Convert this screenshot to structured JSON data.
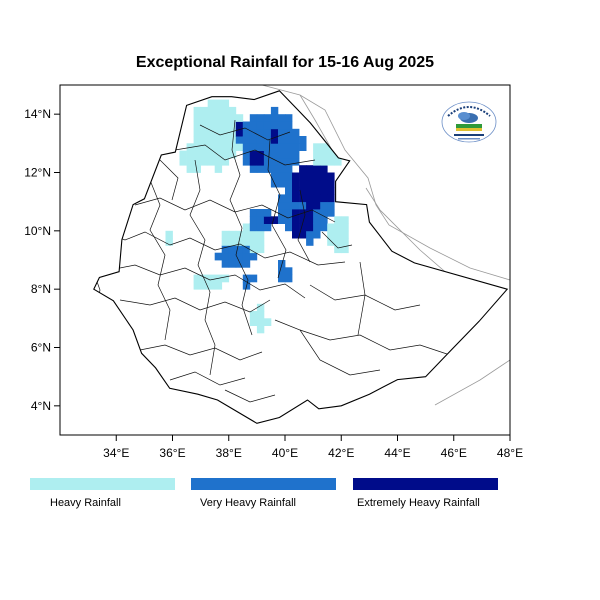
{
  "title": "Exceptional Rainfall for 15-16 Aug 2025",
  "map": {
    "extent": {
      "lon": [
        32.0,
        48.0
      ],
      "lat": [
        3.0,
        15.0
      ]
    },
    "x_ticks": [
      {
        "value": 34,
        "label": "34°E"
      },
      {
        "value": 36,
        "label": "36°E"
      },
      {
        "value": 38,
        "label": "38°E"
      },
      {
        "value": 40,
        "label": "40°E"
      },
      {
        "value": 42,
        "label": "42°E"
      },
      {
        "value": 44,
        "label": "44°E"
      },
      {
        "value": 46,
        "label": "46°E"
      },
      {
        "value": 48,
        "label": "48°E"
      }
    ],
    "y_ticks": [
      {
        "value": 4,
        "label": "4°N"
      },
      {
        "value": 6,
        "label": "6°N"
      },
      {
        "value": 8,
        "label": "8°N"
      },
      {
        "value": 10,
        "label": "10°N"
      },
      {
        "value": 12,
        "label": "12°N"
      },
      {
        "value": 14,
        "label": "14°N"
      }
    ],
    "categories": [
      {
        "key": "heavy",
        "label": "Heavy Rainfall",
        "color": "#aeeef0"
      },
      {
        "key": "very_heavy",
        "label": "Very Heavy Rainfall",
        "color": "#1f72cc"
      },
      {
        "key": "extreme",
        "label": "Extremely Heavy Rainfall",
        "color": "#000c8a"
      }
    ],
    "rain_regions": [
      {
        "cat": "heavy",
        "lon": 37.6,
        "lat": 13.3,
        "rx": 1.0,
        "ry": 1.3
      },
      {
        "cat": "heavy",
        "lon": 38.5,
        "lat": 9.6,
        "rx": 0.8,
        "ry": 0.6
      },
      {
        "cat": "heavy",
        "lon": 37.3,
        "lat": 8.3,
        "rx": 0.7,
        "ry": 0.35
      },
      {
        "cat": "heavy",
        "lon": 39.1,
        "lat": 7.0,
        "rx": 0.3,
        "ry": 0.45
      },
      {
        "cat": "heavy",
        "lon": 41.9,
        "lat": 9.9,
        "rx": 0.5,
        "ry": 0.7
      },
      {
        "cat": "heavy",
        "lon": 41.5,
        "lat": 12.6,
        "rx": 0.5,
        "ry": 0.5
      },
      {
        "cat": "heavy",
        "lon": 36.8,
        "lat": 12.6,
        "rx": 0.5,
        "ry": 0.6
      },
      {
        "cat": "heavy",
        "lon": 35.9,
        "lat": 9.7,
        "rx": 0.25,
        "ry": 0.2
      },
      {
        "cat": "very_heavy",
        "lon": 39.5,
        "lat": 13.0,
        "rx": 1.2,
        "ry": 1.2
      },
      {
        "cat": "very_heavy",
        "lon": 40.8,
        "lat": 10.9,
        "rx": 1.1,
        "ry": 1.3
      },
      {
        "cat": "very_heavy",
        "lon": 38.2,
        "lat": 9.1,
        "rx": 0.7,
        "ry": 0.5
      },
      {
        "cat": "very_heavy",
        "lon": 39.2,
        "lat": 10.4,
        "rx": 0.5,
        "ry": 0.4
      },
      {
        "cat": "very_heavy",
        "lon": 39.9,
        "lat": 8.6,
        "rx": 0.3,
        "ry": 0.4
      },
      {
        "cat": "very_heavy",
        "lon": 38.7,
        "lat": 8.3,
        "rx": 0.2,
        "ry": 0.3
      },
      {
        "cat": "very_heavy",
        "lon": 40.0,
        "lat": 11.8,
        "rx": 0.5,
        "ry": 0.4
      },
      {
        "cat": "extreme",
        "lon": 41.0,
        "lat": 11.6,
        "rx": 0.9,
        "ry": 0.8
      },
      {
        "cat": "extreme",
        "lon": 40.6,
        "lat": 10.3,
        "rx": 0.5,
        "ry": 0.5
      },
      {
        "cat": "extreme",
        "lon": 38.4,
        "lat": 13.6,
        "rx": 0.2,
        "ry": 0.25
      },
      {
        "cat": "extreme",
        "lon": 39.6,
        "lat": 13.3,
        "rx": 0.25,
        "ry": 0.25
      },
      {
        "cat": "extreme",
        "lon": 39.5,
        "lat": 10.4,
        "rx": 0.25,
        "ry": 0.2
      },
      {
        "cat": "extreme",
        "lon": 39.0,
        "lat": 12.5,
        "rx": 0.2,
        "ry": 0.25
      }
    ]
  },
  "logo": {
    "name": "meteorology-agency-logo-icon"
  }
}
